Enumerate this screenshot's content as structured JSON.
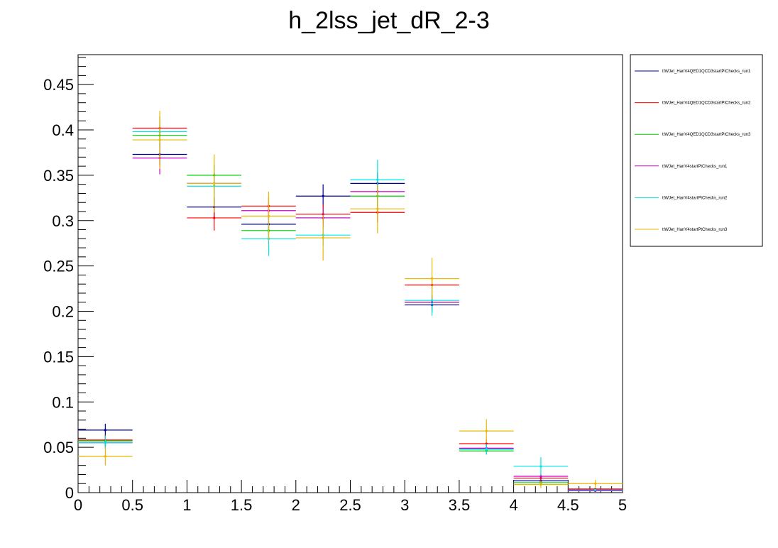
{
  "chart_data": {
    "type": "scatter",
    "title": "h_2lss_jet_dR_2-3",
    "xlabel": "",
    "ylabel": "",
    "xlim": [
      0,
      5
    ],
    "ylim": [
      0,
      0.483
    ],
    "x_ticks": [
      0,
      0.5,
      1,
      1.5,
      2,
      2.5,
      3,
      3.5,
      4,
      4.5,
      5
    ],
    "x_tick_labels": [
      "0",
      "0.5",
      "1",
      "1.5",
      "2",
      "2.5",
      "3",
      "3.5",
      "4",
      "4.5",
      "5"
    ],
    "y_ticks": [
      0,
      0.05,
      0.1,
      0.15,
      0.2,
      0.25,
      0.3,
      0.35,
      0.4,
      0.45
    ],
    "y_tick_labels": [
      "0",
      "0.05",
      "0.1",
      "0.15",
      "0.2",
      "0.25",
      "0.3",
      "0.35",
      "0.4",
      "0.45"
    ],
    "bin_edges": [
      0,
      0.5,
      1,
      1.5,
      2,
      2.5,
      3,
      3.5,
      4,
      4.5,
      5
    ],
    "x": [
      0.25,
      0.75,
      1.25,
      1.75,
      2.25,
      2.75,
      3.25,
      3.75,
      4.25,
      4.75
    ],
    "legend_position": "right",
    "grid": false,
    "series": [
      {
        "name": "ttWJet_HanV4QED1QCD3startPtChecks_run1",
        "color": "#000099",
        "values": [
          0.069,
          0.373,
          0.315,
          0.296,
          0.327,
          0.341,
          0.207,
          0.048,
          0.013,
          0.003
        ],
        "errors": [
          0.007,
          0.012,
          0.011,
          0.01,
          0.013,
          0.012,
          0.009,
          0.004,
          0.002,
          0.001
        ]
      },
      {
        "name": "ttWJet_HanV4QED1QCD3startPtChecks_run2",
        "color": "#ff0000",
        "values": [
          0.058,
          0.402,
          0.303,
          0.316,
          0.307,
          0.309,
          0.229,
          0.054,
          0.016,
          0.004
        ],
        "errors": [
          0.006,
          0.013,
          0.014,
          0.01,
          0.011,
          0.011,
          0.009,
          0.005,
          0.003,
          0.001
        ]
      },
      {
        "name": "ttWJet_HanV4QED1QCD3startPtChecks_run3",
        "color": "#00cc00",
        "values": [
          0.057,
          0.394,
          0.35,
          0.289,
          0.303,
          0.327,
          0.21,
          0.046,
          0.011,
          0.002
        ],
        "errors": [
          0.006,
          0.012,
          0.012,
          0.01,
          0.011,
          0.012,
          0.009,
          0.004,
          0.002,
          0.001
        ]
      },
      {
        "name": "ttWJet_HanV4startPtChecks_run1",
        "color": "#cc00cc",
        "values": [
          0.055,
          0.369,
          0.341,
          0.311,
          0.303,
          0.332,
          0.21,
          0.049,
          0.018,
          0.002
        ],
        "errors": [
          0.006,
          0.018,
          0.012,
          0.01,
          0.011,
          0.011,
          0.009,
          0.004,
          0.003,
          0.001
        ]
      },
      {
        "name": "ttWJet_HanV4startPtChecks_run2",
        "color": "#00e5e5",
        "values": [
          0.055,
          0.398,
          0.338,
          0.28,
          0.284,
          0.345,
          0.212,
          0.048,
          0.029,
          0.003
        ],
        "errors": [
          0.007,
          0.013,
          0.012,
          0.019,
          0.012,
          0.022,
          0.017,
          0.006,
          0.01,
          0.001
        ]
      },
      {
        "name": "ttWJet_HanV4startPtChecks_run3",
        "color": "#e6b800",
        "values": [
          0.04,
          0.389,
          0.341,
          0.305,
          0.281,
          0.313,
          0.236,
          0.068,
          0.009,
          0.01
        ],
        "errors": [
          0.01,
          0.032,
          0.032,
          0.027,
          0.025,
          0.027,
          0.023,
          0.013,
          0.004,
          0.004
        ]
      }
    ]
  }
}
